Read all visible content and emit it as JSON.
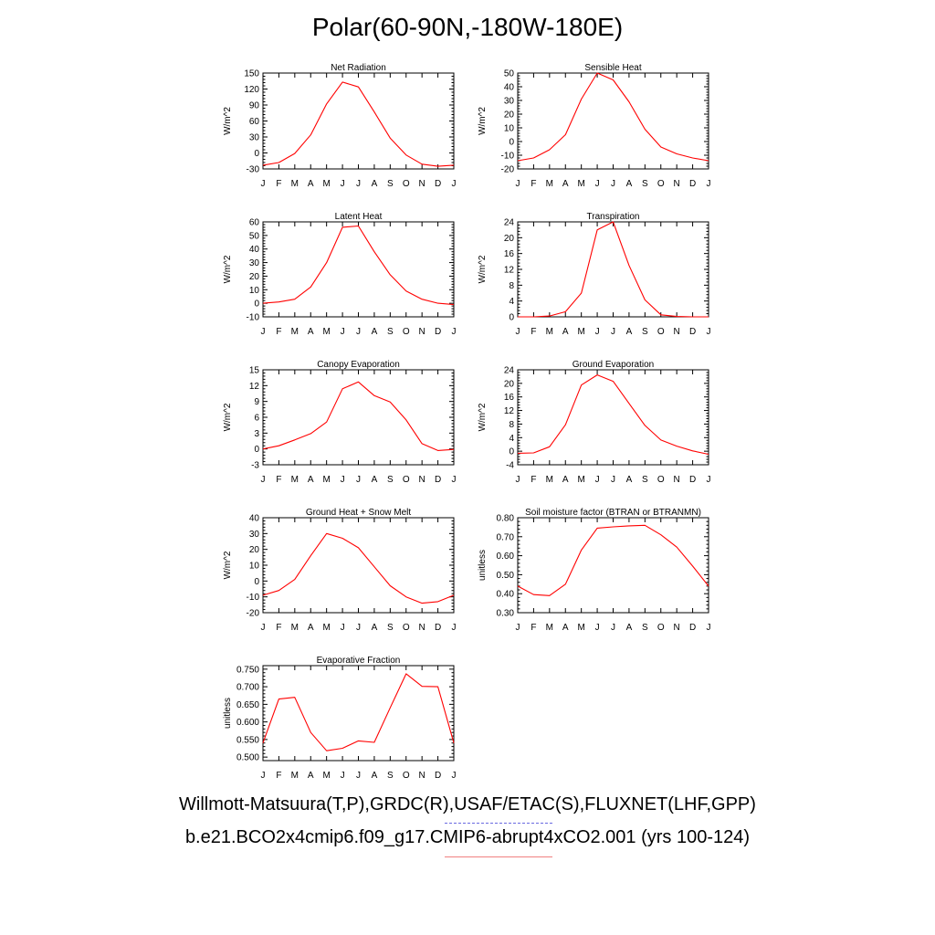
{
  "page_title": "Polar(60-90N,-180W-180E)",
  "legend": {
    "observations": "Willmott-Matsuura(T,P),GRDC(R),USAF/ETAC(S),FLUXNET(LHF,GPP)",
    "model": "b.e21.BCO2x4cmip6.f09_g17.CMIP6-abrupt4xCO2.001 (yrs 100-124)",
    "obs_color": "#6a6ae0",
    "model_color": "#f08080"
  },
  "chart_data": [
    {
      "type": "line",
      "title": "Net Radiation",
      "ylabel": "W/m^2",
      "categories": [
        "J",
        "F",
        "M",
        "A",
        "M",
        "J",
        "J",
        "A",
        "S",
        "O",
        "N",
        "D",
        "J"
      ],
      "ylim": [
        -30,
        150
      ],
      "yticks": [
        -30,
        0,
        30,
        60,
        90,
        120,
        150
      ],
      "ytick_labels": [
        "-30",
        "0",
        "30",
        "60",
        "90",
        "120",
        "150"
      ],
      "series": [
        {
          "values": [
            -23,
            -18,
            -1,
            34,
            92,
            133,
            124,
            77,
            28,
            -4,
            -21,
            -25,
            -23
          ],
          "color": "#ff0000"
        }
      ]
    },
    {
      "type": "line",
      "title": "Sensible Heat",
      "ylabel": "W/m^2",
      "categories": [
        "J",
        "F",
        "M",
        "A",
        "M",
        "J",
        "J",
        "A",
        "S",
        "O",
        "N",
        "D",
        "J"
      ],
      "ylim": [
        -20,
        50
      ],
      "yticks": [
        -20,
        -10,
        0,
        10,
        20,
        30,
        40,
        50
      ],
      "ytick_labels": [
        "-20",
        "-10",
        "0",
        "10",
        "20",
        "30",
        "40",
        "50"
      ],
      "series": [
        {
          "values": [
            -14,
            -12,
            -6,
            5,
            31,
            50,
            45,
            29,
            9,
            -4,
            -9,
            -12,
            -14
          ],
          "color": "#ff0000"
        }
      ]
    },
    {
      "type": "line",
      "title": "Latent Heat",
      "ylabel": "W/m^2",
      "categories": [
        "J",
        "F",
        "M",
        "A",
        "M",
        "J",
        "J",
        "A",
        "S",
        "O",
        "N",
        "D",
        "J"
      ],
      "ylim": [
        -10,
        60
      ],
      "yticks": [
        -10,
        0,
        10,
        20,
        30,
        40,
        50,
        60
      ],
      "ytick_labels": [
        "-10",
        "0",
        "10",
        "20",
        "30",
        "40",
        "50",
        "60"
      ],
      "series": [
        {
          "values": [
            0,
            1,
            3,
            12,
            30,
            56,
            57,
            38,
            21,
            9,
            3,
            0,
            -1
          ],
          "color": "#ff0000"
        }
      ]
    },
    {
      "type": "line",
      "title": "Transpiration",
      "ylabel": "W/m^2",
      "categories": [
        "J",
        "F",
        "M",
        "A",
        "M",
        "J",
        "J",
        "A",
        "S",
        "O",
        "N",
        "D",
        "J"
      ],
      "ylim": [
        0,
        24
      ],
      "yticks": [
        0,
        4,
        8,
        12,
        16,
        20,
        24
      ],
      "ytick_labels": [
        "0",
        "4",
        "8",
        "12",
        "16",
        "20",
        "24"
      ],
      "series": [
        {
          "values": [
            0,
            0,
            0.2,
            1.3,
            6,
            22,
            24,
            13,
            4.3,
            0.5,
            0.1,
            0,
            0
          ],
          "color": "#ff0000"
        }
      ]
    },
    {
      "type": "line",
      "title": "Canopy Evaporation",
      "ylabel": "W/m^2",
      "categories": [
        "J",
        "F",
        "M",
        "A",
        "M",
        "J",
        "J",
        "A",
        "S",
        "O",
        "N",
        "D",
        "J"
      ],
      "ylim": [
        -3,
        15
      ],
      "yticks": [
        -3,
        0,
        3,
        6,
        9,
        12,
        15
      ],
      "ytick_labels": [
        "-3",
        "0",
        "3",
        "6",
        "9",
        "12",
        "15"
      ],
      "series": [
        {
          "values": [
            0,
            0.6,
            1.7,
            2.9,
            5.1,
            11.4,
            12.7,
            10.1,
            8.9,
            5.5,
            1,
            -0.3,
            -0.1
          ],
          "color": "#ff0000"
        }
      ]
    },
    {
      "type": "line",
      "title": "Ground Evaporation",
      "ylabel": "W/m^2",
      "categories": [
        "J",
        "F",
        "M",
        "A",
        "M",
        "J",
        "J",
        "A",
        "S",
        "O",
        "N",
        "D",
        "J"
      ],
      "ylim": [
        -4,
        24
      ],
      "yticks": [
        -4,
        0,
        4,
        8,
        12,
        16,
        20,
        24
      ],
      "ytick_labels": [
        "-4",
        "0",
        "4",
        "8",
        "12",
        "16",
        "20",
        "24"
      ],
      "series": [
        {
          "values": [
            -0.6,
            -0.5,
            1.3,
            7.8,
            19.5,
            22.5,
            20.6,
            14.1,
            7.6,
            3.3,
            1.5,
            0.1,
            -0.9
          ],
          "color": "#ff0000"
        }
      ]
    },
    {
      "type": "line",
      "title": "Ground Heat + Snow Melt",
      "ylabel": "W/m^2",
      "categories": [
        "J",
        "F",
        "M",
        "A",
        "M",
        "J",
        "J",
        "A",
        "S",
        "O",
        "N",
        "D",
        "J"
      ],
      "ylim": [
        -20,
        40
      ],
      "yticks": [
        -20,
        -10,
        0,
        10,
        20,
        30,
        40
      ],
      "ytick_labels": [
        "-20",
        "-10",
        "0",
        "10",
        "20",
        "30",
        "40"
      ],
      "series": [
        {
          "values": [
            -9,
            -6,
            1,
            16,
            30,
            27,
            21,
            9,
            -3,
            -10,
            -14,
            -13,
            -9
          ],
          "color": "#ff0000"
        }
      ]
    },
    {
      "type": "line",
      "title": "Soil moisture factor (BTRAN or BTRANMN)",
      "ylabel": "unitless",
      "categories": [
        "J",
        "F",
        "M",
        "A",
        "M",
        "J",
        "J",
        "A",
        "S",
        "O",
        "N",
        "D",
        "J"
      ],
      "ylim": [
        0.3,
        0.8
      ],
      "yticks": [
        0.3,
        0.4,
        0.5,
        0.6,
        0.7,
        0.8
      ],
      "ytick_labels": [
        "0.30",
        "0.40",
        "0.50",
        "0.60",
        "0.70",
        "0.80"
      ],
      "series": [
        {
          "values": [
            0.44,
            0.395,
            0.39,
            0.45,
            0.63,
            0.745,
            0.752,
            0.757,
            0.76,
            0.71,
            0.645,
            0.545,
            0.44
          ],
          "color": "#ff0000"
        }
      ]
    },
    {
      "type": "line",
      "title": "Evaporative Fraction",
      "ylabel": "unitless",
      "categories": [
        "J",
        "F",
        "M",
        "A",
        "M",
        "J",
        "J",
        "A",
        "S",
        "O",
        "N",
        "D",
        "J"
      ],
      "ylim": [
        0.49,
        0.76
      ],
      "yticks": [
        0.5,
        0.55,
        0.6,
        0.65,
        0.7,
        0.75
      ],
      "ytick_labels": [
        "0.500",
        "0.550",
        "0.600",
        "0.650",
        "0.700",
        "0.750"
      ],
      "series": [
        {
          "values": [
            0.54,
            0.665,
            0.67,
            0.57,
            0.518,
            0.525,
            0.546,
            0.542,
            0.64,
            0.737,
            0.701,
            0.7,
            0.54
          ],
          "color": "#ff0000"
        }
      ]
    }
  ]
}
